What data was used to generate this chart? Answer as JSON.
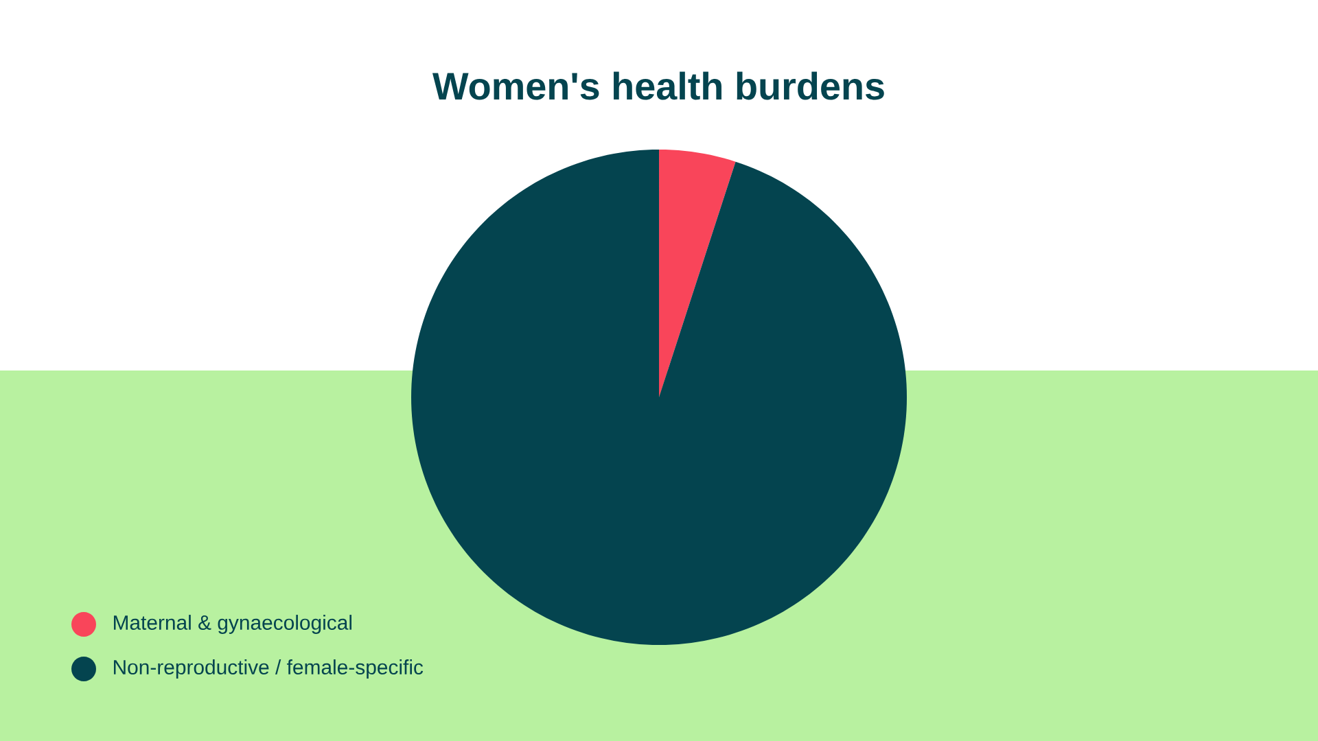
{
  "chart_data": {
    "type": "pie",
    "title": "Women's health burdens",
    "categories": [
      "Maternal & gynaecological",
      "Non-reproductive / female-specific"
    ],
    "values": [
      5,
      95
    ],
    "colors": [
      "#f9455a",
      "#04444f"
    ],
    "legend": "bottom left"
  }
}
